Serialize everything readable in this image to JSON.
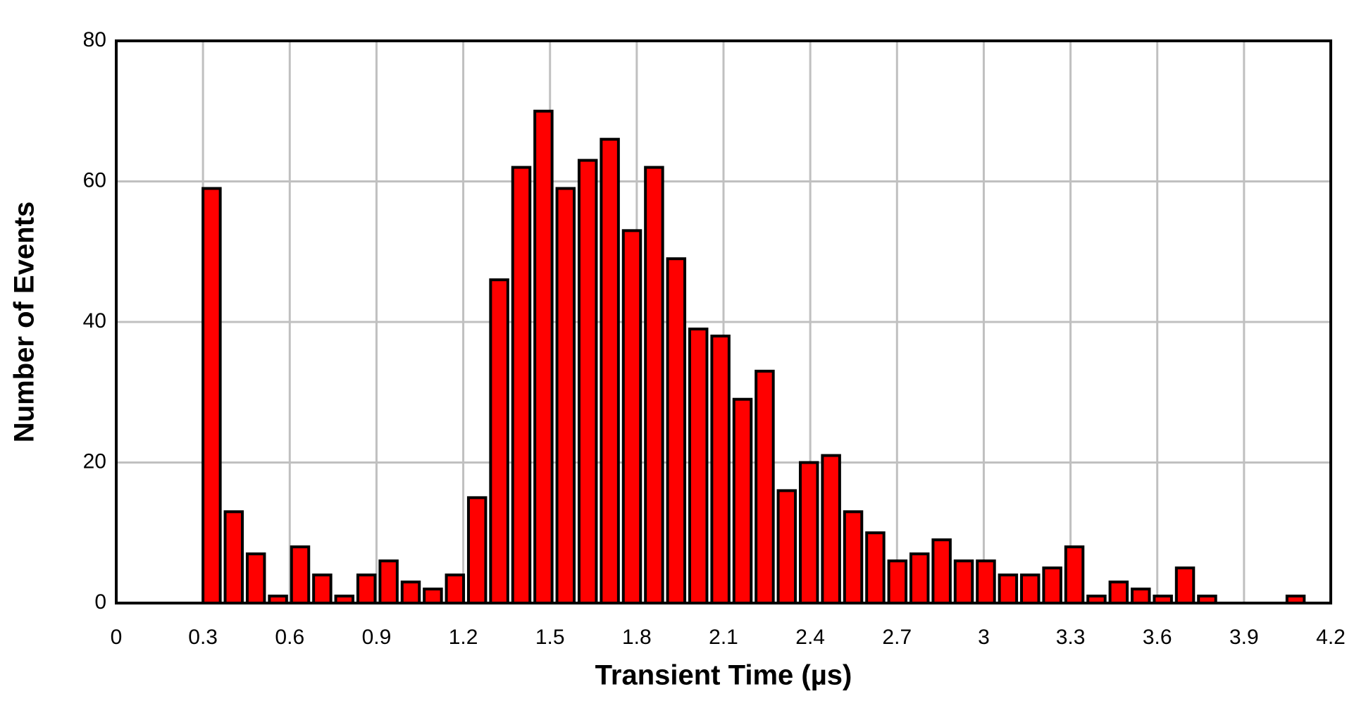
{
  "chart_data": {
    "type": "histogram",
    "xlabel": "Transient Time (µs)",
    "ylabel": "Number of Events",
    "bins": [
      0.3,
      0.3765,
      0.453,
      0.5295,
      0.606,
      0.6825,
      0.759,
      0.8355,
      0.912,
      0.9885,
      1.065,
      1.1415,
      1.218,
      1.2945,
      1.371,
      1.4475,
      1.524,
      1.6005,
      1.677,
      1.7535,
      1.83,
      1.9065,
      1.983,
      2.0595,
      2.136,
      2.2125,
      2.289,
      2.3655,
      2.442,
      2.5185,
      2.595,
      2.6715,
      2.748,
      2.8245,
      2.901,
      2.9775,
      3.054,
      3.1305,
      3.207,
      3.2835,
      3.36,
      3.4365,
      3.513,
      3.5895,
      3.666,
      3.7425,
      3.819,
      3.8955,
      3.972,
      4.0485,
      4.125,
      4.2015
    ],
    "values": [
      59,
      13,
      7,
      1,
      8,
      4,
      1,
      4,
      6,
      3,
      2,
      4,
      15,
      46,
      62,
      70,
      59,
      63,
      66,
      53,
      62,
      49,
      39,
      38,
      29,
      33,
      16,
      20,
      21,
      13,
      10,
      6,
      7,
      9,
      6,
      6,
      4,
      4,
      5,
      8,
      1,
      3,
      2,
      1,
      5,
      1,
      0,
      0,
      0,
      1,
      0
    ],
    "color": "#ff0000",
    "edgecolor": "#000000",
    "xlim": [
      0,
      4.2
    ],
    "xticks": [
      0,
      0.3,
      0.6,
      0.9,
      1.2,
      1.5,
      1.8,
      2.1,
      2.4,
      2.7,
      3,
      3.3,
      3.6,
      3.9,
      4.2
    ],
    "ylim": [
      0,
      80
    ],
    "yticks": [
      0,
      20,
      40,
      60,
      80
    ],
    "grid": true
  }
}
